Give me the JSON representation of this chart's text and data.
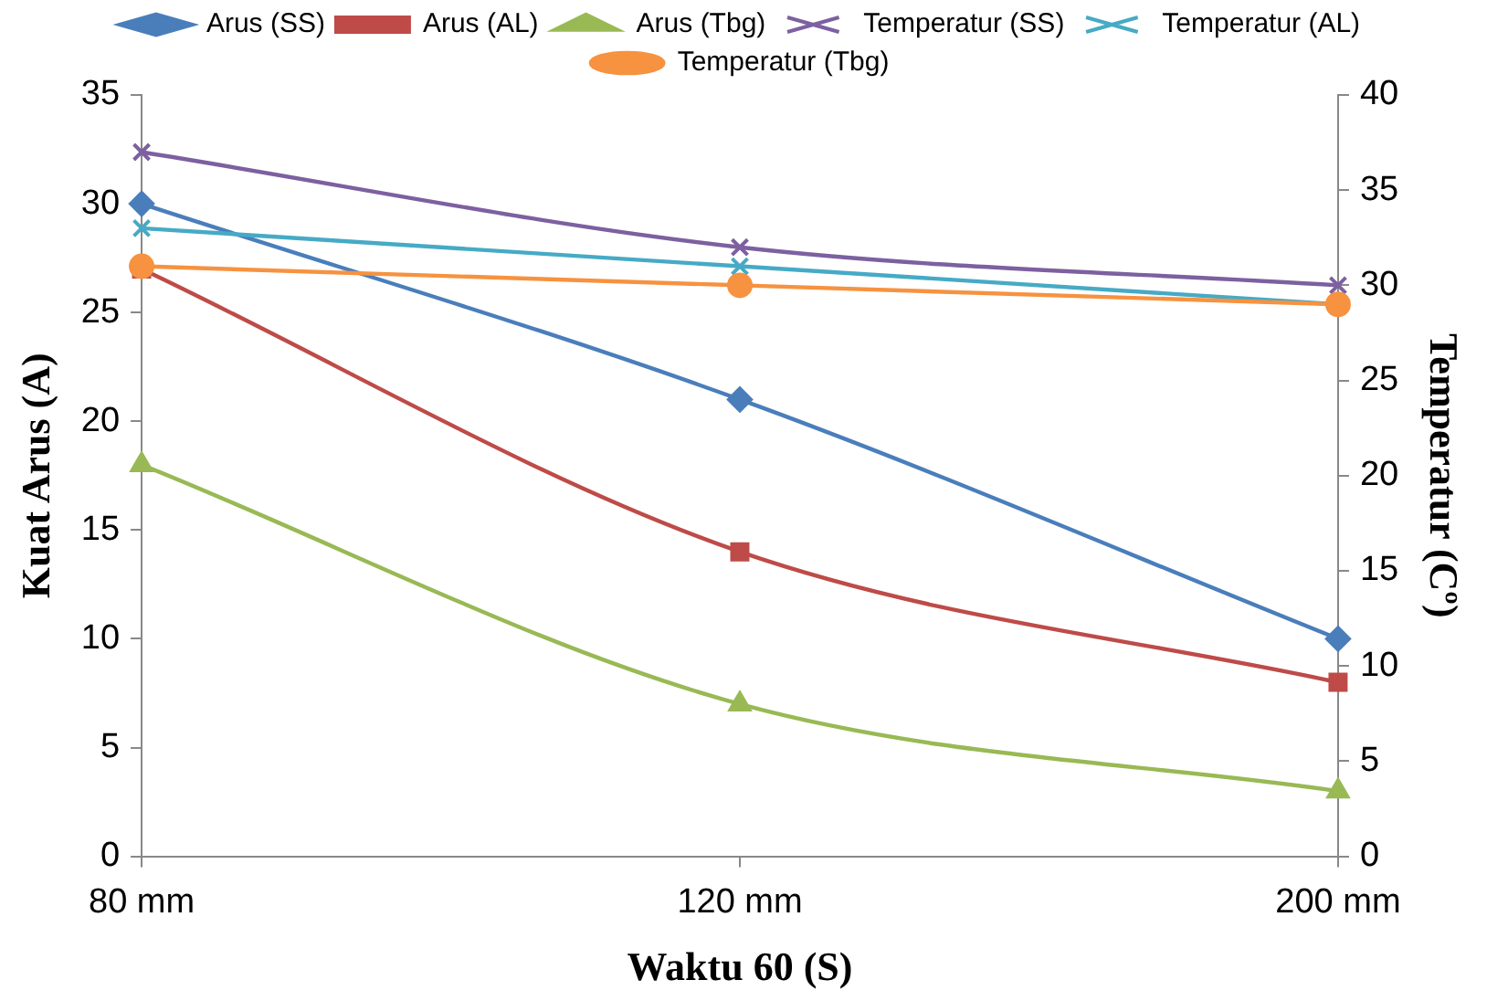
{
  "chart_data": {
    "type": "line",
    "xlabel": "Waktu 60 (S)",
    "ylabel": "Kuat Arus (A)",
    "y2label": "Temperatur (Cº)",
    "categories": [
      "80 mm",
      "120 mm",
      "200 mm"
    ],
    "series": [
      {
        "name": "Arus (SS)",
        "color": "#4a7ebb",
        "marker": "diamond",
        "values": [
          30,
          21,
          10
        ]
      },
      {
        "name": "Arus (AL)",
        "color": "#be4b48",
        "marker": "square",
        "values": [
          27,
          14,
          8
        ]
      },
      {
        "name": "Arus (Tbg)",
        "color": "#98b954",
        "marker": "triangle",
        "values": [
          18,
          7,
          3
        ]
      },
      {
        "name": "Temperatur (SS)",
        "color": "#7d60a0",
        "marker": "cross",
        "axis": "y2",
        "values": [
          37,
          32,
          30
        ]
      },
      {
        "name": "Temperatur (AL)",
        "color": "#46aac5",
        "marker": "cross",
        "axis": "y2",
        "values": [
          33,
          31,
          29
        ]
      },
      {
        "name": "Temperatur (Tbg)",
        "color": "#f69240",
        "marker": "circle",
        "axis": "y2",
        "values": [
          31,
          30,
          29
        ]
      }
    ],
    "ylim": [
      0,
      35
    ],
    "yticks": [
      0,
      5,
      10,
      15,
      20,
      25,
      30,
      35
    ],
    "y2lim": [
      0,
      40
    ],
    "y2ticks": [
      0,
      5,
      10,
      15,
      20,
      25,
      30,
      35,
      40
    ],
    "grid": false,
    "legend": "top",
    "line_style": "solid"
  }
}
